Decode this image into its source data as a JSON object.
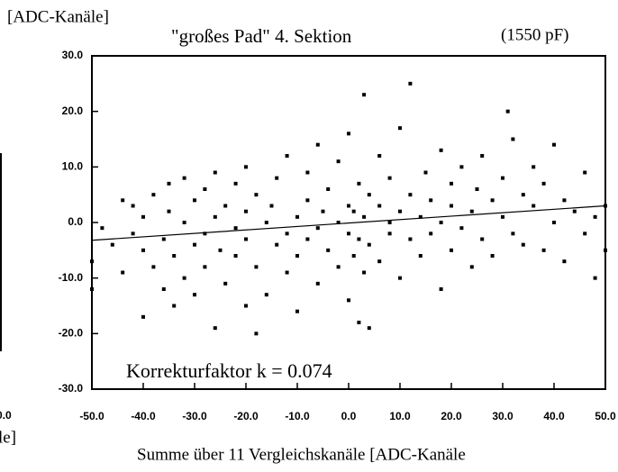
{
  "chart_data": {
    "type": "scatter",
    "title": "\"großes Pad\" 4. Sektion",
    "subtitle": "(1550 pF)",
    "y_label": "[ADC-Kanäle]",
    "x_label": "Summe über 11 Vergleichskanäle [ADC-Kanäle",
    "annotation": "Korrekturfaktor k = 0.074",
    "neighbor_texts": [
      "0.0",
      "le]"
    ],
    "color": "#000000",
    "xlim": [
      -50,
      50
    ],
    "ylim": [
      -30,
      30
    ],
    "xticks": [
      {
        "value": -50,
        "label": "-50.0"
      },
      {
        "value": -40,
        "label": "-40.0"
      },
      {
        "value": -30,
        "label": "-30.0"
      },
      {
        "value": -20,
        "label": "-20.0"
      },
      {
        "value": -10,
        "label": "-10.0"
      },
      {
        "value": 0,
        "label": "0.0"
      },
      {
        "value": 10,
        "label": "10.0"
      },
      {
        "value": 20,
        "label": "20.0"
      },
      {
        "value": 30,
        "label": "30.0"
      },
      {
        "value": 40,
        "label": "40.0"
      },
      {
        "value": 50,
        "label": "50.0"
      }
    ],
    "yticks": [
      {
        "value": -30,
        "label": "-30.0"
      },
      {
        "value": -20,
        "label": "-20.0"
      },
      {
        "value": -10,
        "label": "-10.0"
      },
      {
        "value": 0,
        "label": "0.0"
      },
      {
        "value": 10,
        "label": "10.0"
      },
      {
        "value": 20,
        "label": "20.0"
      },
      {
        "value": 30,
        "label": "30.0"
      }
    ],
    "points": {
      "x": [
        -50,
        -50,
        -48,
        -46,
        -44,
        -44,
        -42,
        -42,
        -40,
        -40,
        -40,
        -38,
        -38,
        -36,
        -36,
        -35,
        -35,
        -34,
        -34,
        -32,
        -32,
        -32,
        -30,
        -30,
        -30,
        -28,
        -28,
        -28,
        -26,
        -26,
        -26,
        -25,
        -24,
        -24,
        -22,
        -22,
        -22,
        -20,
        -20,
        -20,
        -20,
        -18,
        -18,
        -18,
        -16,
        -16,
        -15,
        -14,
        -14,
        -12,
        -12,
        -12,
        -10,
        -10,
        -10,
        -8,
        -8,
        -8,
        -6,
        -6,
        -6,
        -5,
        -4,
        -4,
        -2,
        -2,
        -2,
        0,
        0,
        0,
        0,
        1,
        1,
        2,
        2,
        2,
        3,
        3,
        3,
        4,
        4,
        4,
        6,
        6,
        6,
        8,
        8,
        8,
        10,
        10,
        10,
        12,
        12,
        12,
        14,
        14,
        15,
        16,
        16,
        18,
        18,
        18,
        20,
        20,
        20,
        22,
        22,
        24,
        24,
        25,
        26,
        26,
        28,
        28,
        30,
        30,
        31,
        32,
        32,
        34,
        34,
        36,
        36,
        38,
        38,
        40,
        40,
        42,
        42,
        44,
        46,
        46,
        48,
        48,
        50,
        50
      ],
      "values": [
        -7,
        -12,
        -1,
        -4,
        4,
        -9,
        -2,
        3,
        -5,
        -17,
        1,
        -8,
        5,
        -3,
        -12,
        2,
        7,
        -6,
        -15,
        0,
        8,
        -10,
        -4,
        4,
        -13,
        -2,
        6,
        -8,
        1,
        -19,
        9,
        -5,
        3,
        -11,
        -1,
        7,
        -6,
        2,
        -3,
        -15,
        10,
        -8,
        5,
        -20,
        0,
        -13,
        3,
        -4,
        8,
        -2,
        -9,
        12,
        1,
        -6,
        -16,
        4,
        -3,
        9,
        -1,
        -11,
        14,
        2,
        -5,
        6,
        0,
        -8,
        11,
        -2,
        3,
        -14,
        16,
        2,
        -6,
        -3,
        7,
        -18,
        1,
        23,
        -9,
        -4,
        5,
        -19,
        3,
        -7,
        12,
        0,
        -2,
        8,
        2,
        -10,
        17,
        -3,
        5,
        25,
        1,
        -6,
        9,
        -2,
        4,
        0,
        -12,
        13,
        3,
        -5,
        7,
        -1,
        10,
        2,
        -8,
        6,
        -3,
        12,
        4,
        -6,
        1,
        8,
        20,
        -2,
        15,
        5,
        -4,
        3,
        10,
        -5,
        7,
        0,
        14,
        -7,
        4,
        2,
        9,
        -2,
        1,
        -10,
        3,
        -5
      ]
    },
    "fit_line": {
      "x": [
        -50,
        50
      ],
      "values": [
        -3.2,
        3.0
      ]
    }
  }
}
